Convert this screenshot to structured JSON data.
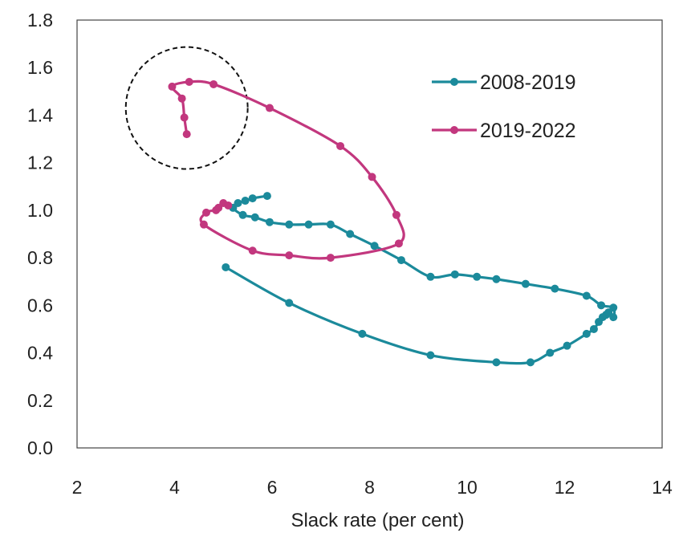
{
  "chart_data": {
    "type": "line",
    "xlabel": "Slack rate (per cent)",
    "ylabel": "",
    "xlim": [
      2,
      14
    ],
    "ylim": [
      0.0,
      1.8
    ],
    "x_ticks": [
      "2",
      "4",
      "6",
      "8",
      "10",
      "12",
      "14"
    ],
    "y_ticks": [
      "0.0",
      "0.2",
      "0.4",
      "0.6",
      "0.8",
      "1.0",
      "1.2",
      "1.4",
      "1.6",
      "1.8"
    ],
    "grid": false,
    "legend_position": "top-right",
    "series": [
      {
        "name": "2008-2019",
        "color": "#1b8a9b",
        "points": [
          [
            5.05,
            0.76
          ],
          [
            6.35,
            0.61
          ],
          [
            7.85,
            0.48
          ],
          [
            9.25,
            0.39
          ],
          [
            10.6,
            0.36
          ],
          [
            11.3,
            0.36
          ],
          [
            11.7,
            0.4
          ],
          [
            12.05,
            0.43
          ],
          [
            12.45,
            0.48
          ],
          [
            12.6,
            0.5
          ],
          [
            12.7,
            0.53
          ],
          [
            12.78,
            0.55
          ],
          [
            12.85,
            0.56
          ],
          [
            12.9,
            0.57
          ],
          [
            13.0,
            0.55
          ],
          [
            13.0,
            0.59
          ],
          [
            12.75,
            0.6
          ],
          [
            12.45,
            0.64
          ],
          [
            11.8,
            0.67
          ],
          [
            11.2,
            0.69
          ],
          [
            10.6,
            0.71
          ],
          [
            10.2,
            0.72
          ],
          [
            9.75,
            0.73
          ],
          [
            9.25,
            0.72
          ],
          [
            8.65,
            0.79
          ],
          [
            8.1,
            0.85
          ],
          [
            7.6,
            0.9
          ],
          [
            7.2,
            0.94
          ],
          [
            6.75,
            0.94
          ],
          [
            6.35,
            0.94
          ],
          [
            5.95,
            0.95
          ],
          [
            5.65,
            0.97
          ],
          [
            5.4,
            0.98
          ],
          [
            5.2,
            1.01
          ],
          [
            5.3,
            1.03
          ],
          [
            5.45,
            1.04
          ],
          [
            5.6,
            1.05
          ],
          [
            5.9,
            1.06
          ]
        ]
      },
      {
        "name": "2019-2022",
        "color": "#c2377e",
        "points": [
          [
            4.25,
            1.32
          ],
          [
            4.2,
            1.39
          ],
          [
            4.15,
            1.47
          ],
          [
            3.95,
            1.52
          ],
          [
            4.3,
            1.54
          ],
          [
            4.8,
            1.53
          ],
          [
            5.95,
            1.43
          ],
          [
            7.4,
            1.27
          ],
          [
            8.05,
            1.14
          ],
          [
            8.55,
            0.98
          ],
          [
            8.6,
            0.86
          ],
          [
            7.2,
            0.8
          ],
          [
            6.35,
            0.81
          ],
          [
            5.6,
            0.83
          ],
          [
            4.6,
            0.94
          ],
          [
            4.65,
            0.99
          ],
          [
            4.85,
            1.0
          ],
          [
            4.9,
            1.01
          ],
          [
            5.0,
            1.03
          ],
          [
            5.1,
            1.02
          ]
        ]
      }
    ],
    "annotations": [
      {
        "type": "dashed-circle",
        "center": [
          4.25,
          1.43
        ],
        "radius_x_units": 1.25
      }
    ]
  }
}
